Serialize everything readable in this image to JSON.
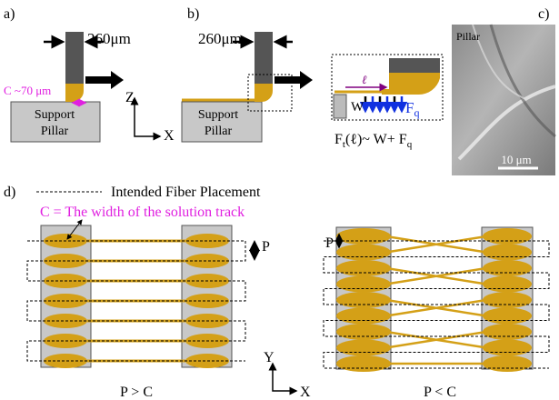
{
  "panel_a": {
    "label": "a)",
    "dimension": "260μm",
    "clearance": "C ~70 μm",
    "pillar": [
      "Support",
      "Pillar"
    ],
    "axes": [
      "Z",
      "X"
    ]
  },
  "panel_b": {
    "label": "b)",
    "dimension": "260μm",
    "pillar": [
      "Support",
      "Pillar"
    ],
    "inset": {
      "length": "ℓ",
      "weight": "W",
      "force": [
        "F",
        "q"
      ],
      "equation": [
        "F",
        "t",
        "(ℓ)~ W+ F",
        "q"
      ]
    }
  },
  "panel_c": {
    "label": "c)",
    "caption": "Pillar",
    "scale": "10 μm"
  },
  "panel_d": {
    "label": "d)",
    "legend": "Intended Fiber Placement",
    "definition": "C = The width of the solution track",
    "left": {
      "pitch": "P",
      "caption": "P > C"
    },
    "right": {
      "pitch": "P",
      "caption": "P < C"
    },
    "axes": [
      "Y",
      "X"
    ]
  }
}
